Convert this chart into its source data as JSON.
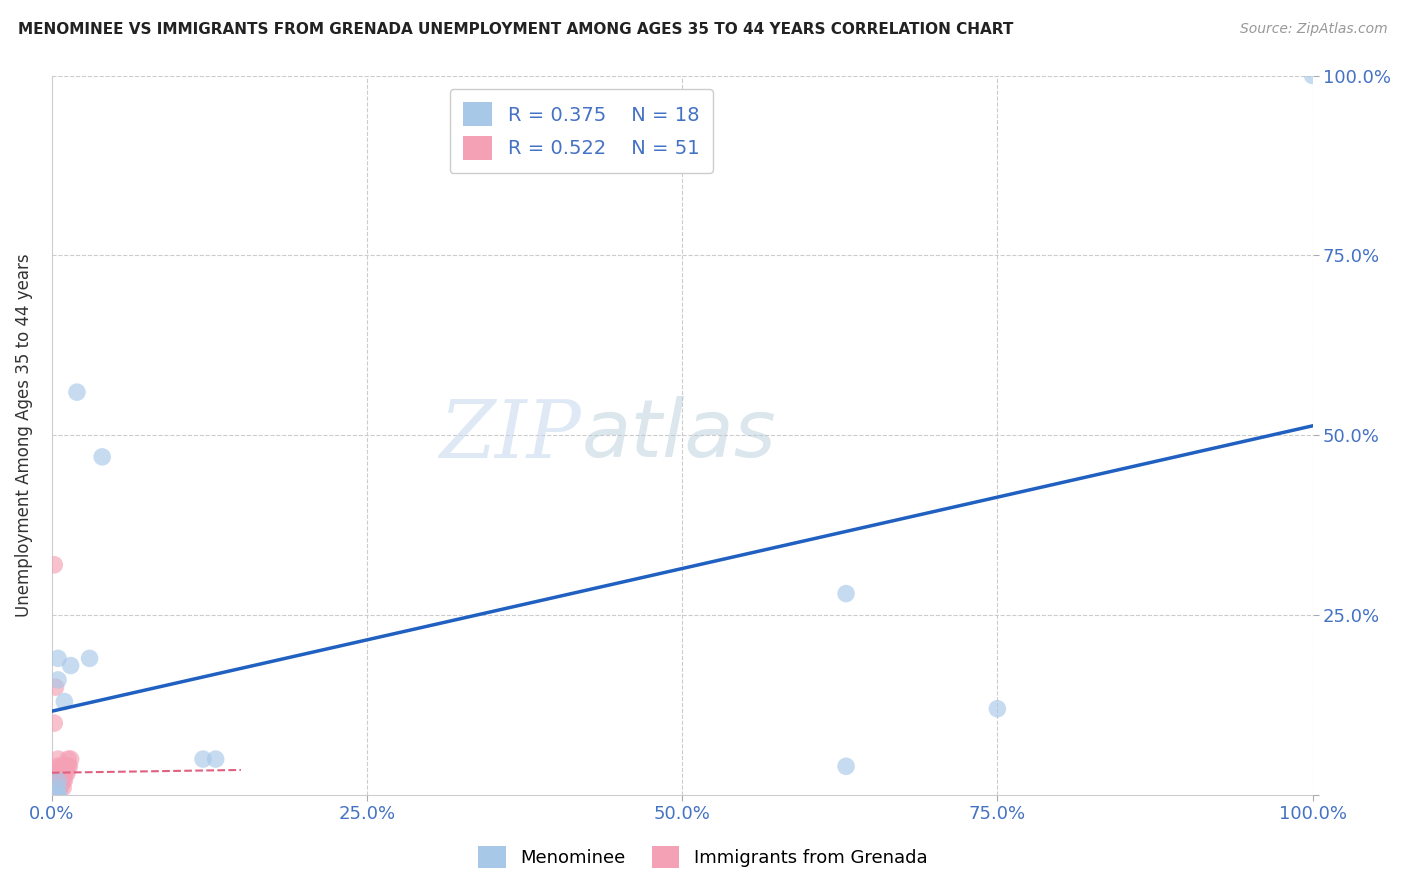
{
  "title": "MENOMINEE VS IMMIGRANTS FROM GRENADA UNEMPLOYMENT AMONG AGES 35 TO 44 YEARS CORRELATION CHART",
  "source": "Source: ZipAtlas.com",
  "ylabel": "Unemployment Among Ages 35 to 44 years",
  "r_menominee": 0.375,
  "n_menominee": 18,
  "r_grenada": 0.522,
  "n_grenada": 51,
  "color_menominee": "#a8c8e8",
  "color_grenada": "#f4a0b5",
  "trend_color_menominee": "#2060c0",
  "trend_color_grenada": "#e06080",
  "menominee_x": [
    0.02,
    0.04,
    0.03,
    0.015,
    0.01,
    0.005,
    0.005,
    0.005,
    0.005,
    0.005,
    0.12,
    0.13,
    0.63,
    0.63,
    0.75,
    1.0,
    0.005,
    0.005
  ],
  "menominee_y": [
    0.56,
    0.47,
    0.19,
    0.18,
    0.13,
    0.19,
    0.16,
    0.02,
    0.01,
    0.0,
    0.05,
    0.05,
    0.28,
    0.04,
    0.12,
    1.0,
    0.0,
    0.0
  ],
  "grenada_x": [
    0.002,
    0.002,
    0.002,
    0.002,
    0.002,
    0.002,
    0.002,
    0.002,
    0.002,
    0.002,
    0.002,
    0.003,
    0.003,
    0.003,
    0.003,
    0.004,
    0.004,
    0.004,
    0.004,
    0.005,
    0.005,
    0.005,
    0.005,
    0.005,
    0.005,
    0.006,
    0.006,
    0.006,
    0.007,
    0.007,
    0.007,
    0.007,
    0.008,
    0.008,
    0.009,
    0.009,
    0.009,
    0.01,
    0.01,
    0.01,
    0.011,
    0.011,
    0.012,
    0.012,
    0.013,
    0.013,
    0.014,
    0.015,
    0.002,
    0.002,
    0.003
  ],
  "grenada_y": [
    0.0,
    0.0,
    0.0,
    0.0,
    0.0,
    0.0,
    0.0,
    0.01,
    0.01,
    0.02,
    0.03,
    0.0,
    0.01,
    0.02,
    0.03,
    0.0,
    0.01,
    0.02,
    0.03,
    0.0,
    0.01,
    0.02,
    0.03,
    0.04,
    0.05,
    0.01,
    0.02,
    0.03,
    0.01,
    0.02,
    0.03,
    0.04,
    0.02,
    0.03,
    0.01,
    0.02,
    0.03,
    0.02,
    0.03,
    0.04,
    0.03,
    0.04,
    0.03,
    0.04,
    0.04,
    0.05,
    0.04,
    0.05,
    0.32,
    0.1,
    0.15
  ],
  "xlim": [
    0.0,
    1.0
  ],
  "ylim": [
    0.0,
    1.0
  ],
  "xticks": [
    0.0,
    0.25,
    0.5,
    0.75,
    1.0
  ],
  "yticks": [
    0.0,
    0.25,
    0.5,
    0.75,
    1.0
  ],
  "xticklabels": [
    "0.0%",
    "25.0%",
    "50.0%",
    "75.0%",
    "100.0%"
  ],
  "yticklabels": [
    "",
    "25.0%",
    "50.0%",
    "75.0%",
    "100.0%"
  ],
  "watermark_zip": "ZIP",
  "watermark_atlas": "atlas",
  "background_color": "#ffffff",
  "grid_color": "#cccccc"
}
